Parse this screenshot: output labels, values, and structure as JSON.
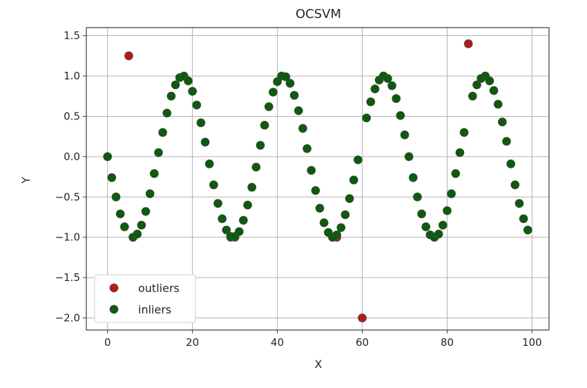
{
  "chart_data": {
    "type": "scatter",
    "title": "OCSVM",
    "xlabel": "X",
    "ylabel": "Y",
    "xlim": [
      -5,
      104
    ],
    "ylim": [
      -2.15,
      1.6
    ],
    "xticks": [
      0,
      20,
      40,
      60,
      80,
      100
    ],
    "xtick_labels": [
      "0",
      "20",
      "40",
      "60",
      "80",
      "100"
    ],
    "yticks": [
      1.5,
      1.0,
      0.5,
      0.0,
      -0.5,
      -1.0,
      -1.5,
      -2.0
    ],
    "ytick_labels": [
      "1.5",
      "1.0",
      "0.5",
      "0.0",
      "−0.5",
      "−1.0",
      "−1.5",
      "−2.0"
    ],
    "grid": true,
    "legend_position": "lower-left",
    "colors": {
      "outliers": "#b21b1b",
      "inliers": "#0e5a0e",
      "grid": "#b0b0b0",
      "frame": "#3a3a3a"
    },
    "series": [
      {
        "name": "outliers",
        "x": [
          5,
          6,
          29,
          30,
          53,
          54,
          60,
          65,
          77,
          85
        ],
        "y": [
          1.25,
          -1.0,
          -1.0,
          -1.0,
          -1.0,
          -1.0,
          -2.0,
          1.0,
          -1.0,
          1.4
        ]
      },
      {
        "name": "inliers",
        "x": [
          0,
          1,
          2,
          3,
          4,
          6,
          7,
          8,
          9,
          10,
          11,
          12,
          13,
          14,
          15,
          16,
          17,
          18,
          19,
          20,
          21,
          22,
          23,
          24,
          25,
          26,
          27,
          28,
          29,
          30,
          31,
          32,
          33,
          34,
          35,
          36,
          37,
          38,
          39,
          40,
          41,
          42,
          43,
          44,
          45,
          46,
          47,
          48,
          49,
          50,
          51,
          52,
          53,
          54,
          55,
          56,
          57,
          58,
          59,
          61,
          62,
          63,
          64,
          65,
          66,
          67,
          68,
          69,
          70,
          71,
          72,
          73,
          74,
          75,
          76,
          77,
          78,
          79,
          80,
          81,
          82,
          83,
          84,
          86,
          87,
          88,
          89,
          90,
          91,
          92,
          93,
          94,
          95,
          96,
          97,
          98,
          99
        ],
        "y": [
          0.0,
          -0.26,
          -0.5,
          -0.71,
          -0.87,
          -1.0,
          -0.96,
          -0.85,
          -0.68,
          -0.46,
          -0.21,
          0.05,
          0.3,
          0.54,
          0.75,
          0.89,
          0.98,
          1.0,
          0.94,
          0.81,
          0.64,
          0.42,
          0.18,
          -0.09,
          -0.35,
          -0.58,
          -0.77,
          -0.91,
          -0.99,
          -0.99,
          -0.93,
          -0.79,
          -0.6,
          -0.38,
          -0.13,
          0.14,
          0.39,
          0.62,
          0.8,
          0.93,
          1.0,
          0.99,
          0.91,
          0.76,
          0.57,
          0.35,
          0.1,
          -0.17,
          -0.42,
          -0.64,
          -0.82,
          -0.94,
          -1.0,
          -0.97,
          -0.88,
          -0.72,
          -0.52,
          -0.29,
          -0.04,
          0.48,
          0.68,
          0.84,
          0.95,
          1.0,
          0.97,
          0.88,
          0.72,
          0.51,
          0.27,
          0.0,
          -0.26,
          -0.5,
          -0.71,
          -0.87,
          -0.97,
          -1.0,
          -0.96,
          -0.85,
          -0.67,
          -0.46,
          -0.21,
          0.05,
          0.3,
          0.75,
          0.89,
          0.97,
          1.0,
          0.94,
          0.82,
          0.65,
          0.43,
          0.19,
          -0.09,
          -0.35,
          -0.58,
          -0.77,
          -0.91
        ]
      }
    ]
  }
}
